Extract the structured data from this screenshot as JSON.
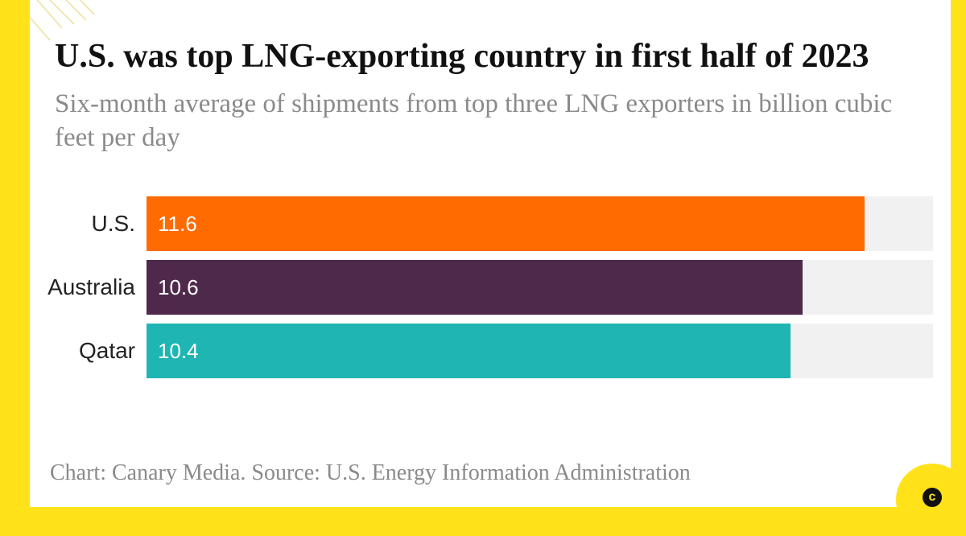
{
  "colors": {
    "background_frame": "#FFE21A",
    "card": "#FFFFFF",
    "track": "#F1F1F1",
    "us": "#FF6B00",
    "australia": "#4F294B",
    "qatar": "#1EB5B2",
    "muted_text": "#8A8A8A"
  },
  "chart_data": {
    "type": "bar",
    "orientation": "horizontal",
    "title": "U.S. was top LNG-exporting country in first half of 2023",
    "subtitle": "Six-month average of shipments from top three LNG exporters in billion cubic feet per day",
    "categories": [
      "U.S.",
      "Australia",
      "Qatar"
    ],
    "values": [
      11.6,
      10.6,
      10.4
    ],
    "value_labels": [
      "11.6",
      "10.6",
      "10.4"
    ],
    "bar_colors": [
      "#FF6B00",
      "#4F294B",
      "#1EB5B2"
    ],
    "xlim": [
      0,
      12.7
    ],
    "grid": false,
    "legend": "none"
  },
  "footer": {
    "source": "Chart: Canary Media. Source: U.S. Energy Information Administration"
  },
  "logo": {
    "letter": "c",
    "icon": "canary-media-logo-icon"
  }
}
